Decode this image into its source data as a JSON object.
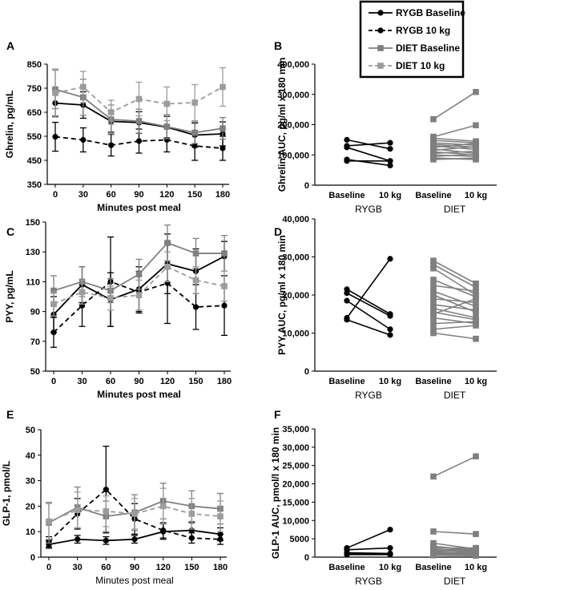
{
  "colors": {
    "rygb": "#000000",
    "diet": "#7f7f7f",
    "diet_light": "#9c9c9c"
  },
  "legend": {
    "items": [
      {
        "label": "RYGB Baseline",
        "color": "#000000",
        "dash": false,
        "marker": "circle"
      },
      {
        "label": "RYGB 10 kg",
        "color": "#000000",
        "dash": true,
        "marker": "circle"
      },
      {
        "label": "DIET Baseline",
        "color": "#7f7f7f",
        "dash": false,
        "marker": "square"
      },
      {
        "label": "DIET 10 kg",
        "color": "#9c9c9c",
        "dash": true,
        "marker": "square"
      }
    ]
  },
  "chart_data": [
    {
      "panel": "A",
      "type": "line",
      "xlabel": "Minutes post meal",
      "ylabel": "Ghrelin, pg/mL",
      "xticks": [
        0,
        30,
        60,
        90,
        120,
        150,
        180
      ],
      "ylim": [
        350,
        850
      ],
      "yticks": [
        350,
        450,
        550,
        650,
        750,
        850
      ],
      "series": [
        {
          "name": "RYGB Baseline",
          "values": [
            688,
            680,
            612,
            607,
            588,
            555,
            560
          ],
          "err": [
            55,
            55,
            45,
            45,
            45,
            50,
            50
          ]
        },
        {
          "name": "RYGB 10 kg",
          "values": [
            548,
            535,
            513,
            530,
            535,
            510,
            500
          ],
          "err": [
            60,
            50,
            45,
            50,
            50,
            60,
            50
          ]
        },
        {
          "name": "DIET Baseline",
          "values": [
            745,
            712,
            620,
            613,
            590,
            565,
            583
          ],
          "err": [
            80,
            75,
            60,
            50,
            50,
            45,
            45
          ]
        },
        {
          "name": "DIET 10 kg",
          "values": [
            730,
            755,
            650,
            705,
            685,
            690,
            755
          ],
          "err": [
            100,
            65,
            50,
            70,
            70,
            75,
            80
          ]
        }
      ]
    },
    {
      "panel": "B",
      "type": "paired-line",
      "ylabel": "Ghrelin AUC, pg/ml x 180 min",
      "ylim": [
        0,
        400000
      ],
      "yticks": [
        "0",
        "100,000",
        "200,000",
        "300,000",
        "400,000"
      ],
      "ytick_values": [
        0,
        100000,
        200000,
        300000,
        400000
      ],
      "xticks": [
        "Baseline",
        "10 kg",
        "Baseline",
        "10 kg"
      ],
      "groups": [
        "RYGB",
        "DIET"
      ],
      "rygb_pairs": [
        [
          150000,
          120000
        ],
        [
          130000,
          140000
        ],
        [
          125000,
          80000
        ],
        [
          85000,
          65000
        ],
        [
          80000,
          80000
        ]
      ],
      "diet_pairs": [
        [
          218000,
          308000
        ],
        [
          160000,
          198000
        ],
        [
          155000,
          145000
        ],
        [
          148000,
          140000
        ],
        [
          140000,
          132000
        ],
        [
          135000,
          125000
        ],
        [
          130000,
          118000
        ],
        [
          125000,
          138000
        ],
        [
          120000,
          105000
        ],
        [
          115000,
          128000
        ],
        [
          110000,
          100000
        ],
        [
          105000,
          112000
        ],
        [
          100000,
          95000
        ],
        [
          95000,
          102000
        ],
        [
          90000,
          85000
        ],
        [
          85000,
          90000
        ]
      ]
    },
    {
      "panel": "C",
      "type": "line",
      "xlabel": "Minutes post meal",
      "ylabel": "PYY, pg/mL",
      "xticks": [
        0,
        30,
        60,
        90,
        120,
        150,
        180
      ],
      "ylim": [
        50,
        150
      ],
      "yticks": [
        50,
        70,
        90,
        110,
        130,
        150
      ],
      "series": [
        {
          "name": "RYGB Baseline",
          "values": [
            88,
            108,
            98,
            105,
            122,
            117,
            127
          ],
          "err": [
            12,
            12,
            18,
            15,
            20,
            15,
            10
          ]
        },
        {
          "name": "RYGB 10 kg",
          "values": [
            76,
            94,
            110,
            103,
            109,
            93,
            94
          ],
          "err": [
            10,
            14,
            30,
            14,
            27,
            15,
            20
          ]
        },
        {
          "name": "DIET Baseline",
          "values": [
            104,
            110,
            104,
            115,
            136,
            129,
            129
          ],
          "err": [
            10,
            10,
            8,
            10,
            12,
            10,
            12
          ]
        },
        {
          "name": "DIET 10 kg",
          "values": [
            95,
            103,
            99,
            101,
            120,
            111,
            107
          ],
          "err": [
            8,
            8,
            8,
            10,
            10,
            9,
            10
          ]
        }
      ]
    },
    {
      "panel": "D",
      "type": "paired-line",
      "ylabel": "PYY AUC, pg/ml x 180 min",
      "ylim": [
        0,
        40000
      ],
      "yticks": [
        "0",
        "10,000",
        "20,000",
        "30,000",
        "40,000"
      ],
      "ytick_values": [
        0,
        10000,
        20000,
        30000,
        40000
      ],
      "xticks": [
        "Baseline",
        "10 kg",
        "Baseline",
        "10 kg"
      ],
      "groups": [
        "RYGB",
        "DIET"
      ],
      "rygb_pairs": [
        [
          21500,
          15000
        ],
        [
          20500,
          14500
        ],
        [
          18500,
          11000
        ],
        [
          14000,
          29500
        ],
        [
          13500,
          9500
        ]
      ],
      "diet_pairs": [
        [
          29000,
          23000
        ],
        [
          28000,
          22000
        ],
        [
          27000,
          20000
        ],
        [
          24000,
          19500
        ],
        [
          22500,
          21000
        ],
        [
          21000,
          17000
        ],
        [
          20000,
          15500
        ],
        [
          19000,
          18000
        ],
        [
          17500,
          16000
        ],
        [
          16500,
          14000
        ],
        [
          15500,
          13500
        ],
        [
          15000,
          19000
        ],
        [
          14000,
          12500
        ],
        [
          12500,
          13000
        ],
        [
          11000,
          12000
        ],
        [
          10000,
          8500
        ]
      ]
    },
    {
      "panel": "E",
      "type": "line",
      "xlabel": "Minutes post meal",
      "ylabel": "GLP-1, pmol/L",
      "xticks": [
        0,
        30,
        60,
        90,
        120,
        150,
        180
      ],
      "ylim": [
        0,
        50
      ],
      "yticks": [
        0,
        10,
        20,
        30,
        40,
        50
      ],
      "series": [
        {
          "name": "RYGB Baseline",
          "values": [
            5,
            7,
            6.5,
            7,
            10,
            10.5,
            9
          ],
          "err": [
            1.5,
            1.5,
            1.5,
            1.5,
            3,
            3,
            2.5
          ]
        },
        {
          "name": "RYGB 10 kg",
          "values": [
            6,
            17,
            26.5,
            15,
            10.5,
            7.5,
            7
          ],
          "err": [
            2,
            6,
            17,
            6,
            3,
            2,
            2
          ]
        },
        {
          "name": "DIET Baseline",
          "values": [
            13.5,
            19.5,
            16,
            17.5,
            22,
            20,
            19
          ],
          "err": [
            8,
            8,
            6,
            7,
            7,
            6,
            6
          ]
        },
        {
          "name": "DIET 10 kg",
          "values": [
            14,
            18.5,
            18,
            17,
            20,
            17,
            16
          ],
          "err": [
            7,
            7,
            6,
            6,
            7,
            6,
            6
          ]
        }
      ]
    },
    {
      "panel": "F",
      "type": "paired-line",
      "ylabel": "GLP-1 AUC, pmol/l x 180 min",
      "ylim": [
        0,
        35000
      ],
      "yticks": [
        "0",
        "5000",
        "10,000",
        "15,000",
        "20,000",
        "25,000",
        "30,000",
        "35,000"
      ],
      "ytick_values": [
        0,
        5000,
        10000,
        15000,
        20000,
        25000,
        30000,
        35000
      ],
      "xticks": [
        "Baseline",
        "10 kg",
        "Baseline",
        "10 kg"
      ],
      "groups": [
        "RYGB",
        "DIET"
      ],
      "rygb_pairs": [
        [
          2500,
          7500
        ],
        [
          2000,
          2500
        ],
        [
          1200,
          1000
        ],
        [
          800,
          900
        ],
        [
          700,
          700
        ]
      ],
      "diet_pairs": [
        [
          22000,
          27500
        ],
        [
          7000,
          6300
        ],
        [
          3800,
          2200
        ],
        [
          3000,
          1800
        ],
        [
          2500,
          2500
        ],
        [
          2200,
          1500
        ],
        [
          2000,
          2200
        ],
        [
          1800,
          1300
        ],
        [
          1500,
          1900
        ],
        [
          1300,
          1000
        ],
        [
          1100,
          1200
        ],
        [
          900,
          800
        ],
        [
          800,
          1000
        ],
        [
          700,
          600
        ],
        [
          600,
          700
        ],
        [
          500,
          400
        ]
      ]
    }
  ]
}
